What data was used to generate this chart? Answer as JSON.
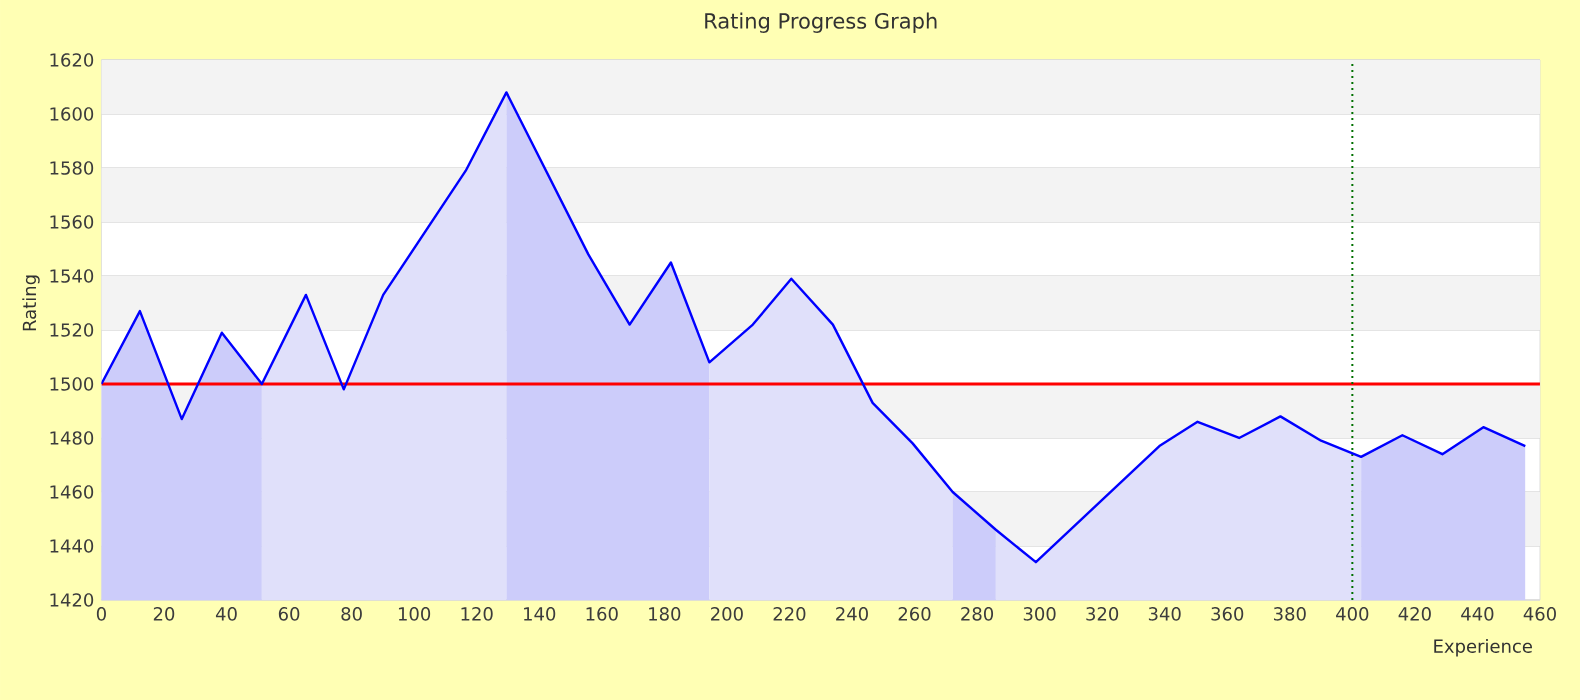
{
  "chart_data": {
    "type": "area",
    "title": "Rating Progress Graph",
    "xlabel": "Experience",
    "ylabel": "Rating",
    "series": [
      {
        "color": "#ccccfa",
        "x": [
          0,
          12.3,
          25.7,
          38.5,
          51.3
        ],
        "values": [
          1500,
          1527,
          1487,
          1519,
          1500
        ]
      },
      {
        "color": "#e0e0fa",
        "x": [
          51.3,
          65.4,
          77.5,
          90.1,
          116.5,
          129.5
        ],
        "values": [
          1500,
          1533,
          1498,
          1533,
          1579,
          1608
        ]
      },
      {
        "color": "#ccccfa",
        "x": [
          129.5,
          155.7,
          168.9,
          182.1,
          194.4
        ],
        "values": [
          1608,
          1548,
          1522,
          1545,
          1508
        ]
      },
      {
        "color": "#e0e0fa",
        "x": [
          194.4,
          208.3,
          220.6,
          233.9,
          246.6,
          259.4,
          272.2
        ],
        "values": [
          1508,
          1522,
          1539,
          1522,
          1493,
          1478,
          1460
        ]
      },
      {
        "color": "#ccccfa",
        "x": [
          272.2,
          286
        ],
        "values": [
          1460,
          1446
        ]
      },
      {
        "color": "#e0e0fa",
        "x": [
          286,
          298.8,
          338.3,
          350.5,
          363.8,
          377,
          390,
          402.8
        ],
        "values": [
          1446,
          1434,
          1477,
          1486,
          1480,
          1488,
          1479,
          1473
        ]
      },
      {
        "color": "#ccccfa",
        "x": [
          402.8,
          416,
          428.8,
          441.9,
          455.3
        ],
        "values": [
          1473,
          1481,
          1474,
          1484,
          1477
        ]
      },
      {
        "type": "line",
        "color": "#0000ff",
        "x": [
          0,
          12.3,
          25.7,
          38.5,
          51.3,
          65.4,
          77.5,
          90.1,
          116.5,
          129.5,
          155.7,
          168.9,
          182.1,
          194.4,
          208.3,
          220.6,
          233.9,
          246.6,
          259.4,
          272.2,
          286,
          298.8,
          338.3,
          350.5,
          363.8,
          377,
          390,
          402.8,
          416,
          428.8,
          441.9,
          455.3
        ],
        "values": [
          1500,
          1527,
          1487,
          1519,
          1500,
          1533,
          1498,
          1533,
          1579,
          1608,
          1548,
          1522,
          1545,
          1508,
          1522,
          1539,
          1522,
          1493,
          1478,
          1460,
          1446,
          1434,
          1477,
          1486,
          1480,
          1488,
          1479,
          1473,
          1481,
          1474,
          1484,
          1477
        ]
      }
    ],
    "xlim": [
      0,
      460
    ],
    "xticks": [
      0,
      20,
      40,
      60,
      80,
      100,
      120,
      140,
      160,
      180,
      200,
      220,
      240,
      260,
      280,
      300,
      320,
      340,
      360,
      380,
      400,
      420,
      440,
      460
    ],
    "ylim": [
      1420,
      1620
    ],
    "yticks": [
      1420,
      1440,
      1460,
      1480,
      1500,
      1520,
      1540,
      1560,
      1580,
      1600,
      1620
    ],
    "grid": "y",
    "ref_lines": [
      {
        "axis": "y",
        "value": 1500,
        "color": "#ff0000",
        "line_style": "solid"
      },
      {
        "axis": "x",
        "value": 400,
        "color": "#007000",
        "line_style": "dotted"
      }
    ]
  }
}
